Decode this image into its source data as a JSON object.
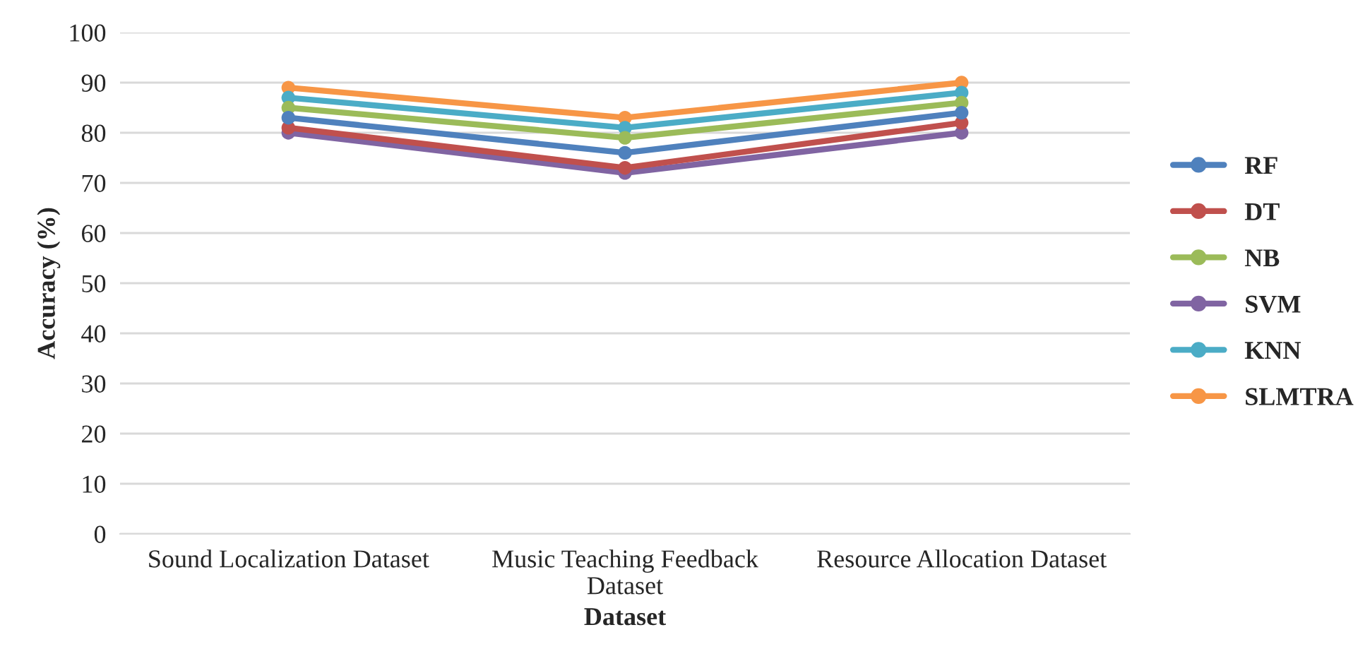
{
  "chart_data": {
    "type": "line",
    "xlabel": "Dataset",
    "ylabel": "Accuracy (%)",
    "categories": [
      "Sound Localization Dataset",
      "Music Teaching Feedback\nDataset",
      "Resource Allocation Dataset"
    ],
    "series": [
      {
        "name": "RF",
        "color": "#4f81bd",
        "values": [
          83,
          76,
          84
        ]
      },
      {
        "name": "DT",
        "color": "#c0504d",
        "values": [
          81,
          73,
          82
        ]
      },
      {
        "name": "NB",
        "color": "#9bbb59",
        "values": [
          85,
          79,
          86
        ]
      },
      {
        "name": "SVM",
        "color": "#8064a2",
        "values": [
          80,
          72,
          80
        ]
      },
      {
        "name": "KNN",
        "color": "#4bacc6",
        "values": [
          87,
          81,
          88
        ]
      },
      {
        "name": "SLMTRA",
        "color": "#f79646",
        "values": [
          89,
          83,
          90
        ]
      }
    ],
    "ylim": [
      0,
      100
    ],
    "yticks": [
      0,
      10,
      20,
      30,
      40,
      50,
      60,
      70,
      80,
      90,
      100
    ],
    "grid": "y",
    "legend": "right",
    "marker": "circle",
    "line_style": "solid"
  }
}
